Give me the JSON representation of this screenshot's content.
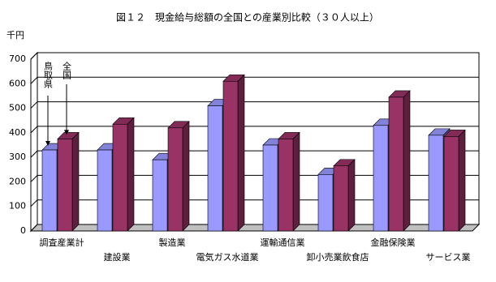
{
  "chart_data": {
    "type": "bar3d",
    "title": "図１２　現金給与総額の全国との産業別比較（３０人以上）",
    "y_label": "千円",
    "categories": [
      "調査産業計",
      "建設業",
      "製造業",
      "電気ガス水道業",
      "運輸通信業",
      "卸小売業飲食店",
      "金融保険業",
      "サービス業"
    ],
    "series": [
      {
        "name": "鳥取県",
        "color": "#9999ff",
        "values": [
          330,
          330,
          290,
          510,
          350,
          230,
          430,
          390
        ]
      },
      {
        "name": "全国",
        "color": "#993366",
        "values": [
          375,
          435,
          420,
          610,
          375,
          265,
          545,
          385
        ]
      }
    ],
    "ylim": [
      0,
      700
    ],
    "yticks": [
      0,
      100,
      200,
      300,
      400,
      500,
      600,
      700
    ],
    "grid": true
  }
}
